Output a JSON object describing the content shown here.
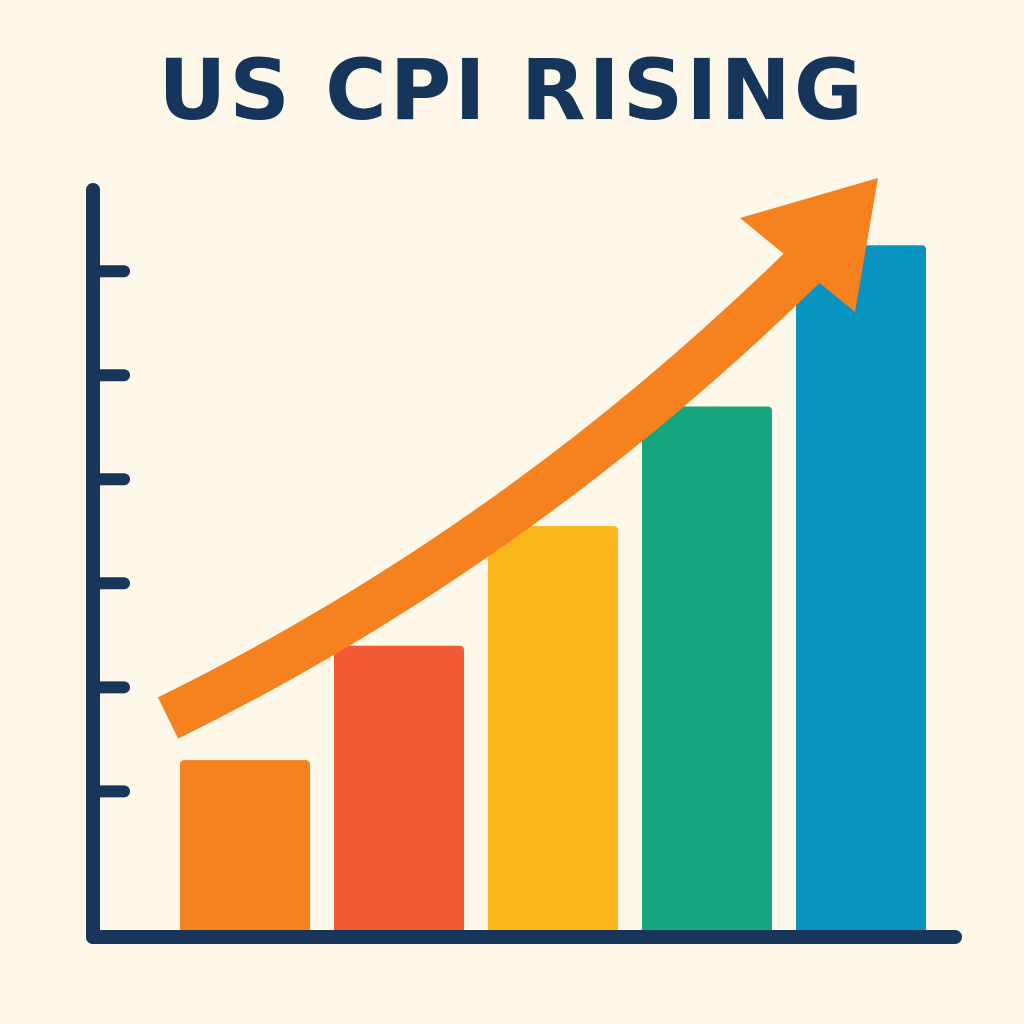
{
  "chart_data": {
    "type": "bar",
    "title": "US CPI RISING",
    "categories": [
      null,
      null,
      null,
      null,
      null
    ],
    "values": [
      1.7,
      2.8,
      3.95,
      5.1,
      6.65
    ],
    "colors": [
      "#f5821f",
      "#f15a35",
      "#fbb61a",
      "#16a67e",
      "#0893c0"
    ],
    "ylim": [
      0,
      7.2
    ],
    "yticks": [
      1.4,
      2.4,
      3.4,
      4.4,
      5.4,
      6.4
    ]
  }
}
